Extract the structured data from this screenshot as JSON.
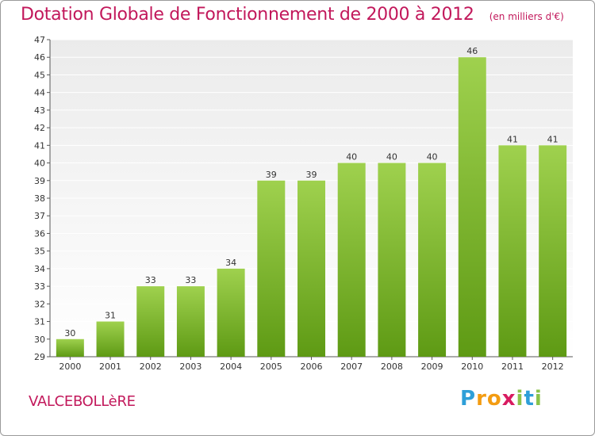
{
  "header": {
    "title": "Dotation Globale de Fonctionnement de 2000 à 2012",
    "subtitle": "(en milliers d'€)"
  },
  "footer": {
    "place": "VALCEBOLLèRE",
    "brand": "Proxiti",
    "brand_letters": [
      {
        "ch": "P",
        "color": "#2e9fd8"
      },
      {
        "ch": "r",
        "color": "#f39c12"
      },
      {
        "ch": "o",
        "color": "#f39c12"
      },
      {
        "ch": "x",
        "color": "#d81b60"
      },
      {
        "ch": "i",
        "color": "#8bc34a"
      },
      {
        "ch": "t",
        "color": "#2e9fd8"
      },
      {
        "ch": "i",
        "color": "#8bc34a"
      }
    ]
  },
  "chart_data": {
    "type": "bar",
    "title": "Dotation Globale de Fonctionnement de 2000 à 2012",
    "subtitle": "(en milliers d'€)",
    "xlabel": "",
    "ylabel": "",
    "categories": [
      "2000",
      "2001",
      "2002",
      "2003",
      "2004",
      "2005",
      "2006",
      "2007",
      "2008",
      "2009",
      "2010",
      "2011",
      "2012"
    ],
    "values": [
      30,
      31,
      33,
      33,
      34,
      39,
      39,
      40,
      40,
      40,
      46,
      41,
      41
    ],
    "ylim": [
      29,
      47
    ],
    "yticks": [
      29,
      30,
      31,
      32,
      33,
      34,
      35,
      36,
      37,
      38,
      39,
      40,
      41,
      42,
      43,
      44,
      45,
      46,
      47
    ],
    "grid": true,
    "colors": {
      "bar_top": "#9fd14e",
      "bar_bottom": "#5e9a14",
      "plot_bg_top": "#ebebeb",
      "plot_bg_bottom": "#ffffff",
      "grid": "#ffffff",
      "axis": "#555555",
      "text": "#333333"
    }
  }
}
